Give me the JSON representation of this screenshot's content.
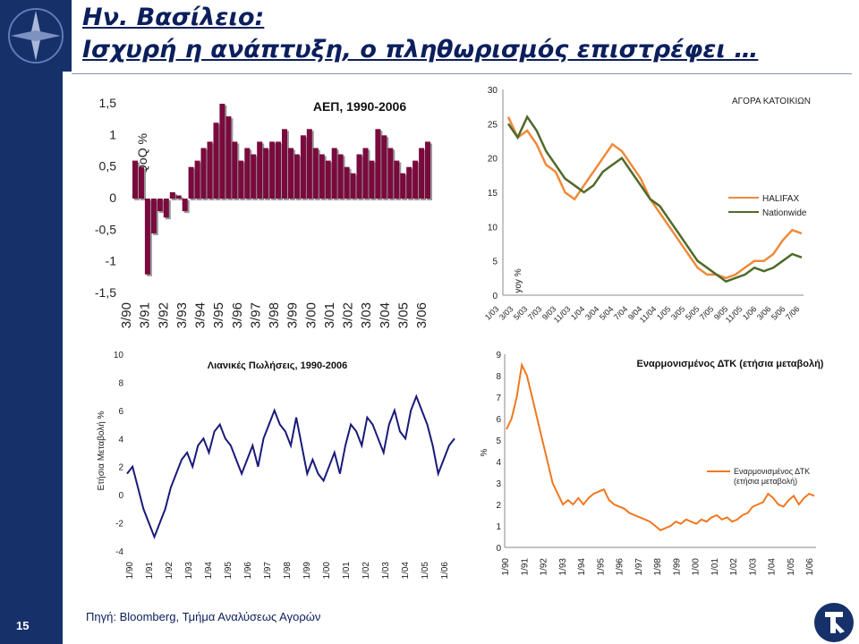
{
  "title_line1": "Ην. Βασίλειο:",
  "title_line2": "Ισχυρή η ανάπτυξη, ο πληθωρισμός επιστρέφει …",
  "page_number": "15",
  "source": "Πηγή: Bloomberg, Τμήμα Αναλύσεως Αγορών",
  "colors": {
    "navy": "#16306a",
    "gdp_bar": "#7a0a3d",
    "halifax": "#f08a3a",
    "nationwide": "#4f6a2a",
    "retail": "#1a1a7a",
    "cpi": "#f07820"
  },
  "chart_data": [
    {
      "type": "bar",
      "title": "ΑΕΠ, 1990-2006",
      "ylabel": "QoQ %",
      "ylim": [
        -1.5,
        1.5
      ],
      "yticks": [
        "1,5",
        "1",
        "0,5",
        "0",
        "-0,5",
        "-1",
        "-1,5"
      ],
      "xticks": [
        "3/90",
        "3/91",
        "3/92",
        "3/93",
        "3/94",
        "3/95",
        "3/96",
        "3/97",
        "3/98",
        "3/99",
        "3/00",
        "3/01",
        "3/02",
        "3/03",
        "3/04",
        "3/05",
        "3/06"
      ],
      "values": [
        0.6,
        0.5,
        -1.2,
        -0.55,
        -0.2,
        -0.3,
        0.1,
        0.05,
        -0.2,
        0.5,
        0.6,
        0.8,
        0.9,
        1.2,
        1.5,
        1.3,
        0.9,
        0.6,
        0.8,
        0.7,
        0.9,
        0.8,
        0.9,
        0.9,
        1.1,
        0.8,
        0.7,
        1.0,
        1.1,
        0.8,
        0.7,
        0.6,
        0.8,
        0.7,
        0.5,
        0.4,
        0.7,
        0.8,
        0.6,
        1.1,
        1.0,
        0.8,
        0.6,
        0.4,
        0.5,
        0.6,
        0.8,
        0.9
      ]
    },
    {
      "type": "line",
      "title": "ΑΓΟΡΑ ΚΑΤΟΙΚΙΩΝ",
      "ylabel": "yoy %",
      "ylim": [
        0,
        30
      ],
      "yticks": [
        "0",
        "5",
        "10",
        "15",
        "20",
        "25",
        "30"
      ],
      "xticks": [
        "1/03",
        "3/03",
        "5/03",
        "7/03",
        "9/03",
        "11/03",
        "1/04",
        "3/04",
        "5/04",
        "7/04",
        "9/04",
        "11/04",
        "1/05",
        "3/05",
        "5/05",
        "7/05",
        "9/05",
        "11/05",
        "1/06",
        "3/06",
        "5/06",
        "7/06"
      ],
      "legend_position": "right",
      "series": [
        {
          "name": "HALIFAX",
          "values": [
            26,
            23,
            24,
            22,
            19,
            18,
            15,
            14,
            16,
            18,
            20,
            22,
            21,
            19,
            17,
            14,
            12,
            10,
            8,
            6,
            4,
            3,
            3,
            2.5,
            3,
            4,
            5,
            5,
            6,
            8,
            9.5,
            9
          ]
        },
        {
          "name": "Nationwide",
          "values": [
            25,
            23,
            26,
            24,
            21,
            19,
            17,
            16,
            15,
            16,
            18,
            19,
            20,
            18,
            16,
            14,
            13,
            11,
            9,
            7,
            5,
            4,
            3,
            2,
            2.5,
            3,
            4,
            3.5,
            4,
            5,
            6,
            5.5
          ]
        }
      ]
    },
    {
      "type": "line",
      "title": "Λιανικές Πωλήσεις, 1990-2006",
      "ylabel": "Ετήσια Μεταβολή %",
      "ylim": [
        -4,
        10
      ],
      "yticks": [
        "10",
        "8",
        "6",
        "4",
        "2",
        "0",
        "-2",
        "-4"
      ],
      "xticks": [
        "1/90",
        "1/91",
        "1/92",
        "1/93",
        "1/94",
        "1/95",
        "1/96",
        "1/97",
        "1/98",
        "1/99",
        "1/00",
        "1/01",
        "1/02",
        "1/03",
        "1/04",
        "1/05",
        "1/06"
      ],
      "series": [
        {
          "name": "",
          "values": [
            1.5,
            2,
            0.5,
            -1,
            -2,
            -3,
            -2,
            -1,
            0.5,
            1.5,
            2.5,
            3,
            2,
            3.5,
            4,
            3,
            4.5,
            5,
            4,
            3.5,
            2.5,
            1.5,
            2.5,
            3.5,
            2,
            4,
            5,
            6,
            5,
            4.5,
            3.5,
            5.5,
            3.5,
            1.5,
            2.5,
            1.5,
            1,
            2,
            3,
            1.5,
            3.5,
            5,
            4.5,
            3.5,
            5.5,
            5,
            4,
            3,
            5,
            6,
            4.5,
            4,
            6,
            7,
            6,
            5,
            3.5,
            1.5,
            2.5,
            3.5,
            4
          ]
        }
      ]
    },
    {
      "type": "line",
      "title": "Εναρμονισμένος ΔΤΚ (ετήσια μεταβολή)",
      "ylabel": "%",
      "ylim": [
        0,
        9
      ],
      "yticks": [
        "9",
        "8",
        "7",
        "6",
        "5",
        "4",
        "3",
        "2",
        "1",
        "0"
      ],
      "xticks": [
        "1/90",
        "1/91",
        "1/92",
        "1/93",
        "1/94",
        "1/95",
        "1/96",
        "1/97",
        "1/98",
        "1/99",
        "1/00",
        "1/01",
        "1/02",
        "1/03",
        "1/04",
        "1/05",
        "1/06"
      ],
      "legend_position": "right",
      "series": [
        {
          "name": "Εναρμονισμένος ΔΤΚ (ετήσια μεταβολή)",
          "values": [
            5.5,
            6,
            7,
            8.5,
            8,
            7,
            6,
            5,
            4,
            3,
            2.5,
            2,
            2.2,
            2,
            2.3,
            2,
            2.3,
            2.5,
            2.6,
            2.7,
            2.2,
            2,
            1.9,
            1.8,
            1.6,
            1.5,
            1.4,
            1.3,
            1.2,
            1,
            0.8,
            0.9,
            1,
            1.2,
            1.1,
            1.3,
            1.2,
            1.1,
            1.3,
            1.2,
            1.4,
            1.5,
            1.3,
            1.4,
            1.2,
            1.3,
            1.5,
            1.6,
            1.9,
            2,
            2.1,
            2.5,
            2.3,
            2.0,
            1.9,
            2.2,
            2.4,
            2.0,
            2.3,
            2.5,
            2.4
          ]
        }
      ]
    }
  ]
}
